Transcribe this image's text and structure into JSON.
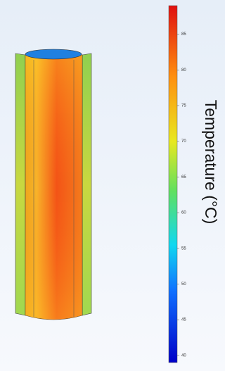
{
  "chart_data": {
    "type": "surface",
    "colorbar": {
      "label": "Temperature (°C)",
      "lim": [
        39,
        89
      ],
      "ticks": [
        40,
        45,
        50,
        55,
        60,
        65,
        70,
        75,
        80,
        85
      ]
    }
  }
}
